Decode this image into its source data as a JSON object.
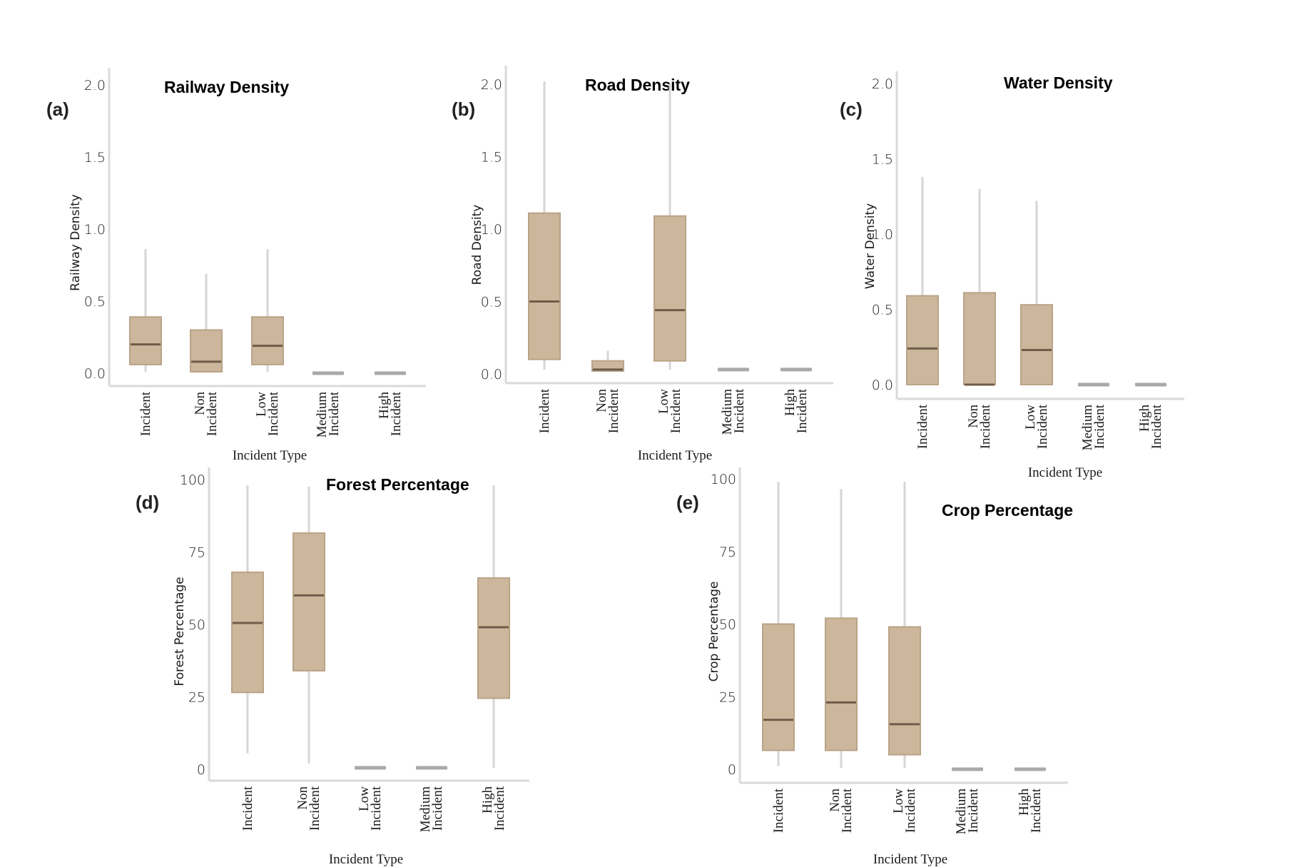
{
  "colors": {
    "box_fill": "#cdb79c",
    "box_edge": "#b9a387",
    "median": "#6e5c4a",
    "whisker": "#d6d6d6",
    "axis": "#d9d9d9",
    "flat_box": "#a9a9a9"
  },
  "chart_data": [
    {
      "type": "boxplot",
      "panel_label": "(a)",
      "title": "Railway Density",
      "xlabel": "Incident Type",
      "ylabel": "Railway Density",
      "ylim": [
        0,
        2.0
      ],
      "yticks": [
        "0.0",
        "0.5",
        "1.0",
        "1.5",
        "2.0"
      ],
      "ytick_values": [
        0,
        0.5,
        1.0,
        1.5,
        2.0
      ],
      "categories": [
        [
          "Incident"
        ],
        [
          "Non",
          "Incident"
        ],
        [
          "Low",
          "Incident"
        ],
        [
          "Medium",
          "Incident"
        ],
        [
          "High",
          "Incident"
        ]
      ],
      "boxes": [
        {
          "min": 0.01,
          "q1": 0.06,
          "median": 0.2,
          "q3": 0.39,
          "max": 0.86
        },
        {
          "min": 0.01,
          "q1": 0.01,
          "median": 0.08,
          "q3": 0.3,
          "max": 0.69
        },
        {
          "min": 0.01,
          "q1": 0.06,
          "median": 0.19,
          "q3": 0.39,
          "max": 0.86
        },
        {
          "min": 0.0,
          "q1": 0.0,
          "median": 0.0,
          "q3": 0.0,
          "max": 0.0
        },
        {
          "min": 0.0,
          "q1": 0.0,
          "median": 0.0,
          "q3": 0.0,
          "max": 0.0
        }
      ]
    },
    {
      "type": "boxplot",
      "panel_label": "(b)",
      "title": "Road Density",
      "xlabel": "Incident Type",
      "ylabel": "Road Density",
      "ylim": [
        0,
        2.0
      ],
      "yticks": [
        "0.0",
        "0.5",
        "1.0",
        "1.5",
        "2.0"
      ],
      "ytick_values": [
        0,
        0.5,
        1.0,
        1.5,
        2.0
      ],
      "categories": [
        [
          "Incident"
        ],
        [
          "Non",
          "Incident"
        ],
        [
          "Low",
          "Incident"
        ],
        [
          "Medium",
          "Incident"
        ],
        [
          "High",
          "Incident"
        ]
      ],
      "boxes": [
        {
          "min": 0.03,
          "q1": 0.1,
          "median": 0.5,
          "q3": 1.11,
          "max": 2.02
        },
        {
          "min": 0.02,
          "q1": 0.02,
          "median": 0.03,
          "q3": 0.09,
          "max": 0.16
        },
        {
          "min": 0.03,
          "q1": 0.09,
          "median": 0.44,
          "q3": 1.09,
          "max": 2.0
        },
        {
          "min": 0.03,
          "q1": 0.03,
          "median": 0.03,
          "q3": 0.03,
          "max": 0.03
        },
        {
          "min": 0.03,
          "q1": 0.03,
          "median": 0.03,
          "q3": 0.03,
          "max": 0.03
        }
      ]
    },
    {
      "type": "boxplot",
      "panel_label": "(c)",
      "title": "Water Density",
      "xlabel": "Incident Type",
      "ylabel": "Water Density",
      "ylim": [
        0,
        2.0
      ],
      "yticks": [
        "0.0",
        "0.5",
        "1.0",
        "1.5",
        "2.0"
      ],
      "ytick_values": [
        0,
        0.5,
        1.0,
        1.5,
        2.0
      ],
      "categories": [
        [
          "Incident"
        ],
        [
          "Non",
          "Incident"
        ],
        [
          "Low",
          "Incident"
        ],
        [
          "Medium",
          "Incident"
        ],
        [
          "High",
          "Incident"
        ]
      ],
      "boxes": [
        {
          "min": 0.0,
          "q1": 0.0,
          "median": 0.24,
          "q3": 0.59,
          "max": 1.38
        },
        {
          "min": 0.0,
          "q1": 0.0,
          "median": 0.0,
          "q3": 0.61,
          "max": 1.3
        },
        {
          "min": 0.0,
          "q1": 0.0,
          "median": 0.23,
          "q3": 0.53,
          "max": 1.22
        },
        {
          "min": 0.0,
          "q1": 0.0,
          "median": 0.0,
          "q3": 0.0,
          "max": 0.0
        },
        {
          "min": 0.0,
          "q1": 0.0,
          "median": 0.0,
          "q3": 0.0,
          "max": 0.0
        }
      ]
    },
    {
      "type": "boxplot",
      "panel_label": "(d)",
      "title": "Forest Percentage",
      "xlabel": "Incident Type",
      "ylabel": "Forest Percentage",
      "ylim": [
        0,
        100
      ],
      "yticks": [
        "0",
        "25",
        "50",
        "75",
        "100"
      ],
      "ytick_values": [
        0,
        25,
        50,
        75,
        100
      ],
      "categories": [
        [
          "Incident"
        ],
        [
          "Non",
          "Incident"
        ],
        [
          "Low",
          "Incident"
        ],
        [
          "Medium",
          "Incident"
        ],
        [
          "High",
          "Incident"
        ]
      ],
      "boxes": [
        {
          "min": 5.5,
          "q1": 26.5,
          "median": 50.5,
          "q3": 68,
          "max": 98
        },
        {
          "min": 2,
          "q1": 34,
          "median": 60,
          "q3": 81.5,
          "max": 97.5
        },
        {
          "min": 0.5,
          "q1": 0.5,
          "median": 0.5,
          "q3": 0.5,
          "max": 0.5
        },
        {
          "min": 0.5,
          "q1": 0.5,
          "median": 0.5,
          "q3": 0.5,
          "max": 0.5
        },
        {
          "min": 0.5,
          "q1": 24.5,
          "median": 49,
          "q3": 66,
          "max": 98
        }
      ]
    },
    {
      "type": "boxplot",
      "panel_label": "(e)",
      "title": "Crop Percentage",
      "xlabel": "Incident Type",
      "ylabel": "Crop Percentage",
      "ylim": [
        0,
        100
      ],
      "yticks": [
        "0",
        "25",
        "50",
        "75",
        "100"
      ],
      "ytick_values": [
        0,
        25,
        50,
        75,
        100
      ],
      "categories": [
        [
          "Incident"
        ],
        [
          "Non",
          "Incident"
        ],
        [
          "Low",
          "Incident"
        ],
        [
          "Medium",
          "Incident"
        ],
        [
          "High",
          "Incident"
        ]
      ],
      "boxes": [
        {
          "min": 1,
          "q1": 6.5,
          "median": 17,
          "q3": 50,
          "max": 99
        },
        {
          "min": 0.5,
          "q1": 6.5,
          "median": 23,
          "q3": 52,
          "max": 96.5
        },
        {
          "min": 0.5,
          "q1": 5,
          "median": 15.5,
          "q3": 49,
          "max": 99
        },
        {
          "min": 0,
          "q1": 0,
          "median": 0,
          "q3": 0,
          "max": 0
        },
        {
          "min": 0,
          "q1": 0,
          "median": 0,
          "q3": 0,
          "max": 0
        }
      ]
    }
  ]
}
